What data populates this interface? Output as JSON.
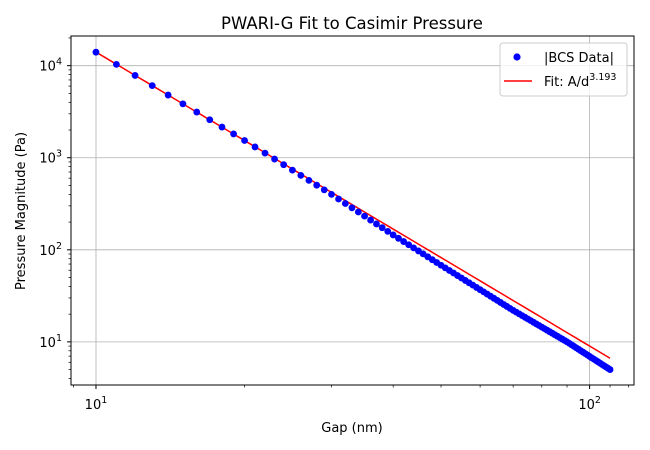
{
  "chart_data": {
    "type": "scatter",
    "title": "PWARI-G Fit to Casimir Pressure",
    "xlabel": "Gap (nm)",
    "ylabel": "Pressure Magnitude (Pa)",
    "xscale": "log",
    "yscale": "log",
    "xlim": [
      8.9,
      123
    ],
    "ylim": [
      3.4,
      21000
    ],
    "grid": true,
    "legend_position": "top-right",
    "x_ticks": [
      {
        "value": 10,
        "base": "10",
        "exp": "1"
      },
      {
        "value": 100,
        "base": "10",
        "exp": "2"
      }
    ],
    "y_ticks": [
      {
        "value": 10,
        "base": "10",
        "exp": "1"
      },
      {
        "value": 100,
        "base": "10",
        "exp": "2"
      },
      {
        "value": 1000,
        "base": "10",
        "exp": "3"
      },
      {
        "value": 10000,
        "base": "10",
        "exp": "4"
      }
    ],
    "series": [
      {
        "name": "|BCS Data|",
        "kind": "scatter",
        "color": "#0000ff",
        "x_start": 10,
        "x_end": 110,
        "x_step": 1,
        "anchors": [
          {
            "x": 10,
            "y": 14000
          },
          {
            "x": 20,
            "y": 1540
          },
          {
            "x": 30,
            "y": 400
          },
          {
            "x": 40,
            "y": 145
          },
          {
            "x": 50,
            "y": 68
          },
          {
            "x": 70,
            "y": 22
          },
          {
            "x": 90,
            "y": 10
          },
          {
            "x": 110,
            "y": 5
          }
        ]
      },
      {
        "name": "Fit: A/d",
        "name_superscript": "3.193",
        "kind": "line",
        "color": "#ff0000",
        "A": 21900000,
        "exponent": 3.193,
        "x_range": [
          10,
          110
        ]
      }
    ]
  }
}
